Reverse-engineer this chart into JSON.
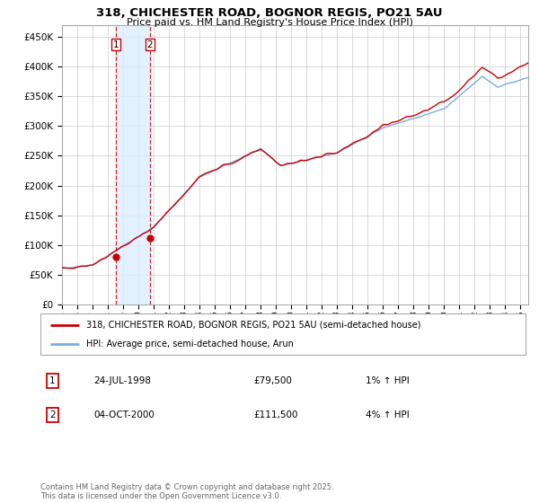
{
  "title_line1": "318, CHICHESTER ROAD, BOGNOR REGIS, PO21 5AU",
  "title_line2": "Price paid vs. HM Land Registry's House Price Index (HPI)",
  "background_color": "#ffffff",
  "grid_color": "#cccccc",
  "hpi_color": "#7aade0",
  "price_color": "#cc0000",
  "vline_color": "#cc0000",
  "shade_color": "#ddeeff",
  "transaction1": {
    "label": "1",
    "date": "24-JUL-1998",
    "price": "£79,500",
    "hpi": "1% ↑ HPI",
    "year": 1998.54
  },
  "transaction2": {
    "label": "2",
    "date": "04-OCT-2000",
    "price": "£111,500",
    "hpi": "4% ↑ HPI",
    "year": 2000.75
  },
  "t1_price": 79500,
  "t2_price": 111500,
  "legend_price_label": "318, CHICHESTER ROAD, BOGNOR REGIS, PO21 5AU (semi-detached house)",
  "legend_hpi_label": "HPI: Average price, semi-detached house, Arun",
  "footer": "Contains HM Land Registry data © Crown copyright and database right 2025.\nThis data is licensed under the Open Government Licence v3.0.",
  "ylim": [
    0,
    470000
  ],
  "yticks": [
    0,
    50000,
    100000,
    150000,
    200000,
    250000,
    300000,
    350000,
    400000,
    450000
  ],
  "ytick_labels": [
    "£0",
    "£50K",
    "£100K",
    "£150K",
    "£200K",
    "£250K",
    "£300K",
    "£350K",
    "£400K",
    "£450K"
  ],
  "xmin": 1995.0,
  "xmax": 2025.5
}
